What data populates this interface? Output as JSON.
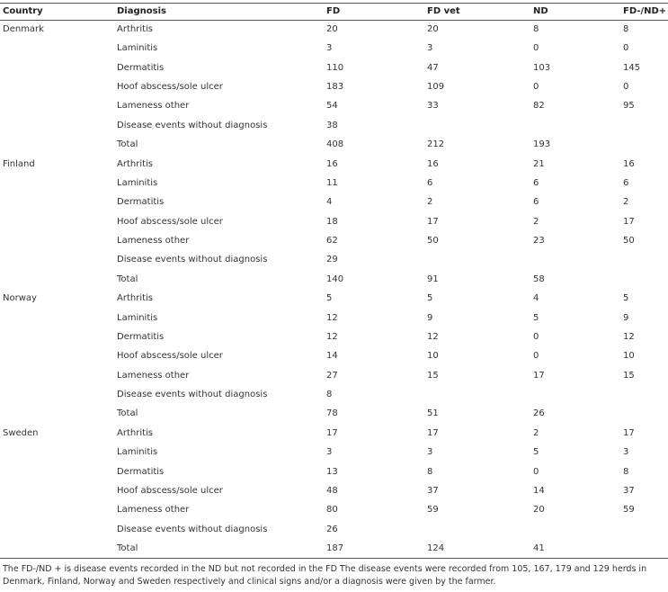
{
  "table": {
    "columns": [
      "Country",
      "Diagnosis",
      "FD",
      "FD vet",
      "ND",
      "FD-/ND+"
    ],
    "groups": [
      {
        "country": "Denmark",
        "rows": [
          [
            "Arthritis",
            20,
            20,
            8,
            8
          ],
          [
            "Laminitis",
            3,
            3,
            0,
            0
          ],
          [
            "Dermatitis",
            110,
            47,
            103,
            145
          ],
          [
            "Hoof abscess/sole ulcer",
            183,
            109,
            0,
            0
          ],
          [
            "Lameness other",
            54,
            33,
            82,
            95
          ],
          [
            "Disease events without diagnosis",
            38,
            null,
            null,
            null
          ],
          [
            "Total",
            408,
            212,
            193,
            null
          ]
        ]
      },
      {
        "country": "Finland",
        "rows": [
          [
            "Arthritis",
            16,
            16,
            21,
            16
          ],
          [
            "Laminitis",
            11,
            6,
            6,
            6
          ],
          [
            "Dermatitis",
            4,
            2,
            6,
            2
          ],
          [
            "Hoof abscess/sole ulcer",
            18,
            17,
            2,
            17
          ],
          [
            "Lameness other",
            62,
            50,
            23,
            50
          ],
          [
            "Disease events without diagnosis",
            29,
            null,
            null,
            null
          ],
          [
            "Total",
            140,
            91,
            58,
            null
          ]
        ]
      },
      {
        "country": "Norway",
        "rows": [
          [
            "Arthritis",
            5,
            5,
            4,
            5
          ],
          [
            "Laminitis",
            12,
            9,
            5,
            9
          ],
          [
            "Dermatitis",
            12,
            12,
            0,
            12
          ],
          [
            "Hoof abscess/sole ulcer",
            14,
            10,
            0,
            10
          ],
          [
            "Lameness other",
            27,
            15,
            17,
            15
          ],
          [
            "Disease events without diagnosis",
            8,
            null,
            null,
            null
          ],
          [
            "Total",
            78,
            51,
            26,
            null
          ]
        ]
      },
      {
        "country": "Sweden",
        "rows": [
          [
            "Arthritis",
            17,
            17,
            2,
            17
          ],
          [
            "Laminitis",
            3,
            3,
            5,
            3
          ],
          [
            "Dermatitis",
            13,
            8,
            0,
            8
          ],
          [
            "Hoof abscess/sole ulcer",
            48,
            37,
            14,
            37
          ],
          [
            "Lameness other",
            80,
            59,
            20,
            59
          ],
          [
            "Disease events without diagnosis",
            26,
            null,
            null,
            null
          ],
          [
            "Total",
            187,
            124,
            41,
            null
          ]
        ]
      }
    ]
  },
  "footnote": "The FD-/ND + is disease events recorded in the ND but not recorded in the FD The disease events were recorded from 105, 167, 179 and 129 herds in Denmark, Finland, Norway and Sweden respectively and clinical signs and/or a diagnosis were given by the farmer."
}
